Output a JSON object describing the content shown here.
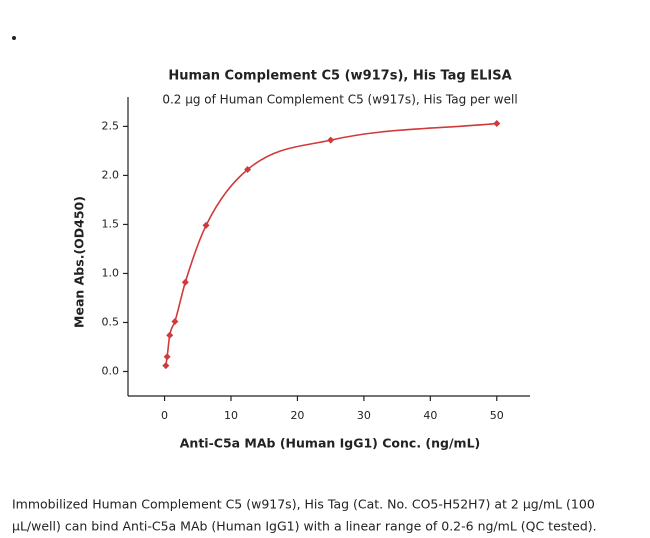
{
  "chart_data": {
    "type": "scatter",
    "title": "Human Complement C5 (w917s), His Tag ELISA",
    "subtitle": "0.2 µg of Human Complement C5 (w917s), His Tag per well",
    "x_label": "Anti-C5a MAb (Human IgG1) Conc. (ng/mL)",
    "y_label": "Mean Abs.(OD450)",
    "x": [
      0.195,
      0.39,
      0.78,
      1.56,
      3.125,
      6.25,
      12.5,
      25,
      50
    ],
    "values": [
      0.06,
      0.15,
      0.37,
      0.51,
      0.91,
      1.49,
      2.06,
      2.36,
      2.53
    ],
    "color": "#d03a3a",
    "fit_line": true,
    "xlim": [
      -5.5,
      55
    ],
    "xticks": [
      0,
      10,
      20,
      30,
      40,
      50
    ],
    "ylim": [
      -0.25,
      2.8
    ],
    "yticks": [
      {
        "value": 0,
        "label": "0.0"
      },
      0.5,
      {
        "value": 1,
        "label": "1.0"
      },
      1.5,
      {
        "value": 2,
        "label": "2.0"
      },
      2.5
    ]
  },
  "caption": [
    "Immobilized Human Complement C5 (w917s), His Tag (Cat. No. CO5-H52H7) at 2 µg/mL (100",
    "µL/well) can bind Anti-C5a MAb (Human IgG1) with a linear range of 0.2-6 ng/mL (QC tested)."
  ]
}
